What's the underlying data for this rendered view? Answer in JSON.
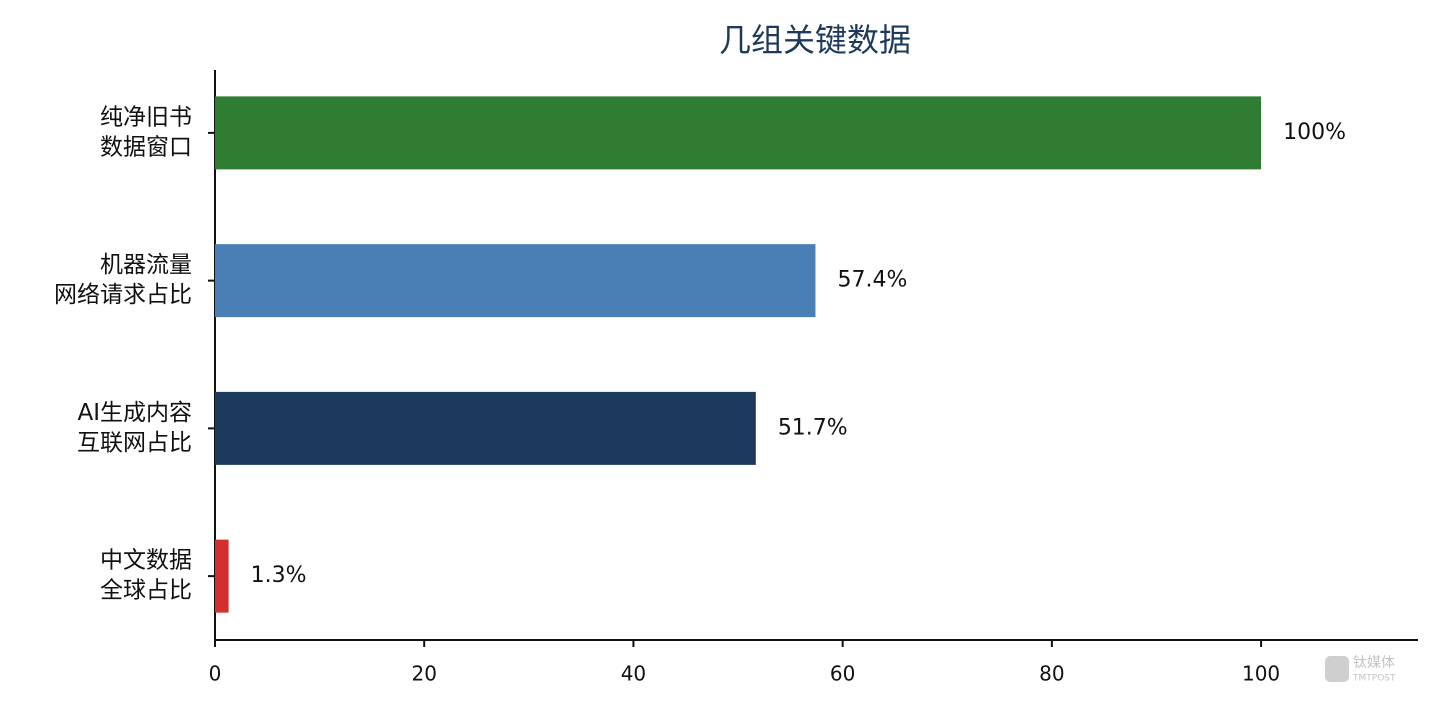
{
  "chart_data": {
    "type": "hbar",
    "title": "几组关键数据",
    "categories": [
      [
        "纯净旧书",
        "数据窗口"
      ],
      [
        "机器流量",
        "网络请求占比"
      ],
      [
        "AI生成内容",
        "互联网占比"
      ],
      [
        "中文数据",
        "全球占比"
      ]
    ],
    "values": [
      100,
      57.4,
      51.7,
      1.3
    ],
    "value_labels": [
      "100%",
      "57.4%",
      "51.7%",
      "1.3%"
    ],
    "colors": [
      "#2e7d32",
      "#4a7fb5",
      "#1d3a5c",
      "#d32f2f"
    ],
    "xlim": [
      0,
      115
    ],
    "xticks": [
      0,
      20,
      40,
      60,
      80,
      100
    ],
    "grid": false
  },
  "watermark": {
    "brand": "钛媒体",
    "sub": "TMTPOST"
  }
}
